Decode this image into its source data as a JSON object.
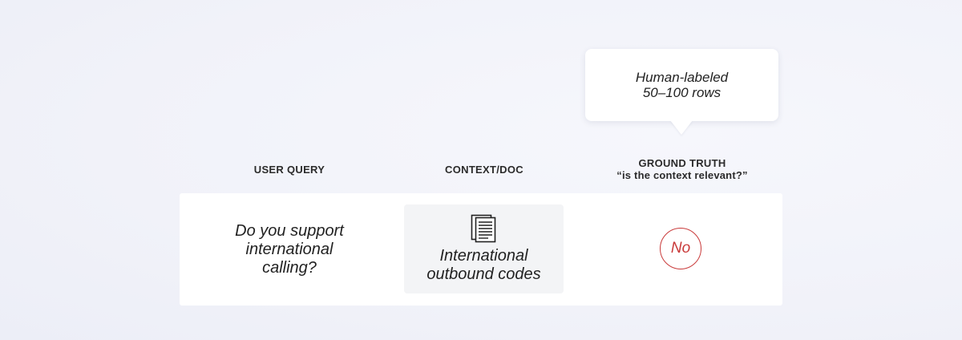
{
  "callout": {
    "line1": "Human-labeled",
    "line2": "50–100 rows"
  },
  "headers": {
    "query": "USER QUERY",
    "context": "CONTEXT/DOC",
    "truth": "GROUND TRUTH",
    "truth_sub": "“is the context relevant?”"
  },
  "row": {
    "query_line1": "Do you support",
    "query_line2": "international",
    "query_line3": "calling?",
    "doc_icon": "document-icon",
    "doc_line1": "International",
    "doc_line2": "outbound codes",
    "answer": "No"
  },
  "colors": {
    "answer_red": "#c93a3a",
    "doc_box_bg": "#f3f4f6"
  }
}
